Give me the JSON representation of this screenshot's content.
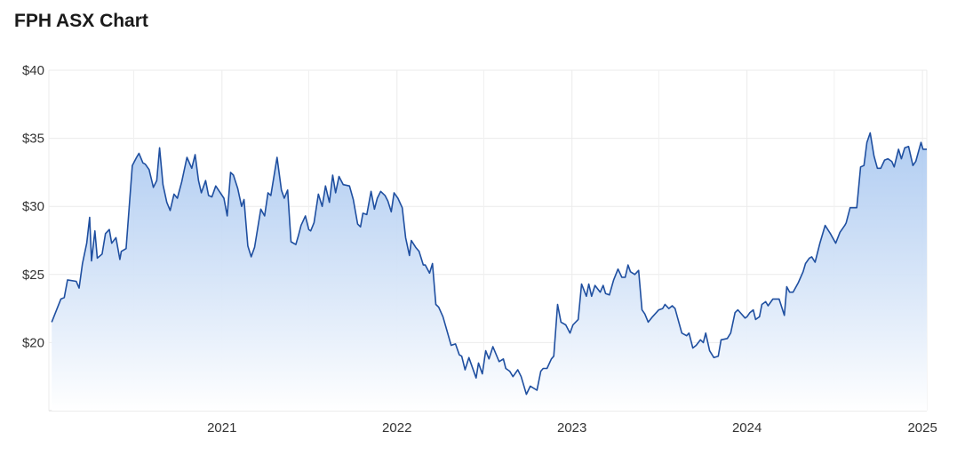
{
  "chart_data": {
    "type": "area",
    "title": "FPH ASX Chart",
    "xlabel": "",
    "ylabel": "",
    "ylim": [
      15,
      40
    ],
    "xlim": [
      "2020-01-06",
      "2025-01-10"
    ],
    "y_ticks": [
      20,
      25,
      30,
      35,
      40
    ],
    "y_tick_labels": [
      "$20",
      "$25",
      "$30",
      "$35",
      "$40"
    ],
    "x_ticks": [
      "2021-01-01",
      "2022-01-01",
      "2023-01-01",
      "2024-01-01",
      "2025-01-01"
    ],
    "x_tick_labels": [
      "2021",
      "2022",
      "2023",
      "2024",
      "2025"
    ],
    "minor_gridlines_x": [
      "2020-07-01",
      "2021-07-01",
      "2022-07-01",
      "2023-07-01",
      "2024-07-01"
    ],
    "grid": true,
    "legend": "none",
    "colors": {
      "line": "#1f4fa0",
      "fill_top": "#a8c7f0",
      "fill_bottom": "#ffffff",
      "grid": "#ebebeb"
    },
    "series": [
      {
        "points": [
          [
            "2020-01-12",
            21.5
          ],
          [
            "2020-01-31",
            23.2
          ],
          [
            "2020-02-07",
            23.3
          ],
          [
            "2020-02-14",
            24.6
          ],
          [
            "2020-03-03",
            24.5
          ],
          [
            "2020-03-09",
            24.0
          ],
          [
            "2020-03-16",
            25.8
          ],
          [
            "2020-03-25",
            27.3
          ],
          [
            "2020-03-31",
            29.2
          ],
          [
            "2020-04-04",
            26.0
          ],
          [
            "2020-04-11",
            28.2
          ],
          [
            "2020-04-16",
            26.2
          ],
          [
            "2020-04-26",
            26.5
          ],
          [
            "2020-05-03",
            28.0
          ],
          [
            "2020-05-11",
            28.3
          ],
          [
            "2020-05-16",
            27.3
          ],
          [
            "2020-05-25",
            27.7
          ],
          [
            "2020-06-02",
            26.1
          ],
          [
            "2020-06-05",
            26.7
          ],
          [
            "2020-06-15",
            26.9
          ],
          [
            "2020-06-28",
            33.0
          ],
          [
            "2020-07-07",
            33.6
          ],
          [
            "2020-07-12",
            33.9
          ],
          [
            "2020-07-20",
            33.2
          ],
          [
            "2020-07-25",
            33.1
          ],
          [
            "2020-08-02",
            32.7
          ],
          [
            "2020-08-11",
            31.4
          ],
          [
            "2020-08-18",
            31.9
          ],
          [
            "2020-08-24",
            34.3
          ],
          [
            "2020-08-31",
            31.6
          ],
          [
            "2020-09-08",
            30.3
          ],
          [
            "2020-09-15",
            29.7
          ],
          [
            "2020-09-23",
            30.9
          ],
          [
            "2020-09-30",
            30.6
          ],
          [
            "2020-10-09",
            31.8
          ],
          [
            "2020-10-20",
            33.6
          ],
          [
            "2020-10-30",
            32.8
          ],
          [
            "2020-11-06",
            33.8
          ],
          [
            "2020-11-13",
            31.9
          ],
          [
            "2020-11-19",
            31.0
          ],
          [
            "2020-11-28",
            31.9
          ],
          [
            "2020-12-04",
            30.8
          ],
          [
            "2020-12-11",
            30.7
          ],
          [
            "2020-12-19",
            31.5
          ],
          [
            "2021-01-05",
            30.6
          ],
          [
            "2021-01-12",
            29.3
          ],
          [
            "2021-01-19",
            32.5
          ],
          [
            "2021-01-25",
            32.3
          ],
          [
            "2021-02-03",
            31.3
          ],
          [
            "2021-02-11",
            30.0
          ],
          [
            "2021-02-16",
            30.5
          ],
          [
            "2021-02-24",
            27.1
          ],
          [
            "2021-03-03",
            26.3
          ],
          [
            "2021-03-10",
            27.0
          ],
          [
            "2021-03-23",
            29.8
          ],
          [
            "2021-03-31",
            29.3
          ],
          [
            "2021-04-07",
            31.0
          ],
          [
            "2021-04-13",
            30.8
          ],
          [
            "2021-04-26",
            33.6
          ],
          [
            "2021-05-05",
            31.2
          ],
          [
            "2021-05-11",
            30.6
          ],
          [
            "2021-05-18",
            31.2
          ],
          [
            "2021-05-25",
            27.4
          ],
          [
            "2021-06-04",
            27.2
          ],
          [
            "2021-06-09",
            27.8
          ],
          [
            "2021-06-15",
            28.6
          ],
          [
            "2021-06-24",
            29.3
          ],
          [
            "2021-07-01",
            28.3
          ],
          [
            "2021-07-05",
            28.2
          ],
          [
            "2021-07-12",
            28.8
          ],
          [
            "2021-07-21",
            30.9
          ],
          [
            "2021-07-29",
            30.0
          ],
          [
            "2021-08-05",
            31.5
          ],
          [
            "2021-08-13",
            30.3
          ],
          [
            "2021-08-20",
            32.3
          ],
          [
            "2021-08-26",
            31.0
          ],
          [
            "2021-09-02",
            32.2
          ],
          [
            "2021-09-11",
            31.6
          ],
          [
            "2021-09-24",
            31.5
          ],
          [
            "2021-10-02",
            30.5
          ],
          [
            "2021-10-11",
            28.7
          ],
          [
            "2021-10-17",
            28.5
          ],
          [
            "2021-10-22",
            29.5
          ],
          [
            "2021-10-30",
            29.4
          ],
          [
            "2021-11-08",
            31.1
          ],
          [
            "2021-11-15",
            29.8
          ],
          [
            "2021-11-21",
            30.6
          ],
          [
            "2021-11-28",
            31.1
          ],
          [
            "2021-12-07",
            30.8
          ],
          [
            "2021-12-13",
            30.4
          ],
          [
            "2021-12-20",
            29.6
          ],
          [
            "2021-12-26",
            31.0
          ],
          [
            "2022-01-03",
            30.6
          ],
          [
            "2022-01-12",
            29.9
          ],
          [
            "2022-01-19",
            27.7
          ],
          [
            "2022-01-27",
            26.4
          ],
          [
            "2022-01-31",
            27.5
          ],
          [
            "2022-02-09",
            27.0
          ],
          [
            "2022-02-16",
            26.7
          ],
          [
            "2022-02-25",
            25.7
          ],
          [
            "2022-03-01",
            25.7
          ],
          [
            "2022-03-10",
            25.1
          ],
          [
            "2022-03-16",
            25.8
          ],
          [
            "2022-03-23",
            22.8
          ],
          [
            "2022-03-29",
            22.6
          ],
          [
            "2022-04-07",
            21.9
          ],
          [
            "2022-04-15",
            20.9
          ],
          [
            "2022-04-24",
            19.8
          ],
          [
            "2022-05-03",
            19.9
          ],
          [
            "2022-05-11",
            19.1
          ],
          [
            "2022-05-16",
            19.0
          ],
          [
            "2022-05-23",
            18.0
          ],
          [
            "2022-05-31",
            18.9
          ],
          [
            "2022-06-15",
            17.4
          ],
          [
            "2022-06-20",
            18.5
          ],
          [
            "2022-06-28",
            17.7
          ],
          [
            "2022-07-05",
            19.4
          ],
          [
            "2022-07-12",
            18.8
          ],
          [
            "2022-07-20",
            19.7
          ],
          [
            "2022-08-02",
            18.6
          ],
          [
            "2022-08-11",
            18.8
          ],
          [
            "2022-08-16",
            18.1
          ],
          [
            "2022-08-24",
            17.9
          ],
          [
            "2022-08-31",
            17.5
          ],
          [
            "2022-09-10",
            18.0
          ],
          [
            "2022-09-17",
            17.5
          ],
          [
            "2022-09-28",
            16.2
          ],
          [
            "2022-10-06",
            16.8
          ],
          [
            "2022-10-20",
            16.5
          ],
          [
            "2022-10-28",
            17.9
          ],
          [
            "2022-11-02",
            18.1
          ],
          [
            "2022-11-10",
            18.1
          ],
          [
            "2022-11-19",
            18.8
          ],
          [
            "2022-11-24",
            19.0
          ],
          [
            "2022-12-02",
            22.8
          ],
          [
            "2022-12-09",
            21.5
          ],
          [
            "2022-12-19",
            21.3
          ],
          [
            "2022-12-28",
            20.7
          ],
          [
            "2023-01-03",
            21.3
          ],
          [
            "2023-01-14",
            21.7
          ],
          [
            "2023-01-21",
            24.3
          ],
          [
            "2023-01-31",
            23.4
          ],
          [
            "2023-02-05",
            24.3
          ],
          [
            "2023-02-11",
            23.4
          ],
          [
            "2023-02-18",
            24.2
          ],
          [
            "2023-03-01",
            23.7
          ],
          [
            "2023-03-07",
            24.2
          ],
          [
            "2023-03-12",
            23.6
          ],
          [
            "2023-03-20",
            23.5
          ],
          [
            "2023-03-29",
            24.6
          ],
          [
            "2023-04-07",
            25.4
          ],
          [
            "2023-04-15",
            24.8
          ],
          [
            "2023-04-22",
            24.8
          ],
          [
            "2023-04-28",
            25.7
          ],
          [
            "2023-05-03",
            25.2
          ],
          [
            "2023-05-12",
            25.0
          ],
          [
            "2023-05-20",
            25.3
          ],
          [
            "2023-05-27",
            22.4
          ],
          [
            "2023-06-02",
            22.1
          ],
          [
            "2023-06-09",
            21.5
          ],
          [
            "2023-06-18",
            21.9
          ],
          [
            "2023-07-01",
            22.4
          ],
          [
            "2023-07-09",
            22.5
          ],
          [
            "2023-07-14",
            22.8
          ],
          [
            "2023-07-22",
            22.5
          ],
          [
            "2023-07-29",
            22.7
          ],
          [
            "2023-08-04",
            22.5
          ],
          [
            "2023-08-18",
            20.7
          ],
          [
            "2023-08-28",
            20.5
          ],
          [
            "2023-09-02",
            20.7
          ],
          [
            "2023-09-10",
            19.6
          ],
          [
            "2023-09-17",
            19.8
          ],
          [
            "2023-09-26",
            20.2
          ],
          [
            "2023-10-02",
            20.0
          ],
          [
            "2023-10-07",
            20.7
          ],
          [
            "2023-10-15",
            19.4
          ],
          [
            "2023-10-24",
            18.9
          ],
          [
            "2023-11-02",
            19.0
          ],
          [
            "2023-11-08",
            20.2
          ],
          [
            "2023-11-21",
            20.3
          ],
          [
            "2023-11-28",
            20.7
          ],
          [
            "2023-12-07",
            22.2
          ],
          [
            "2023-12-13",
            22.4
          ],
          [
            "2023-12-28",
            21.8
          ],
          [
            "2024-01-01",
            21.9
          ],
          [
            "2024-01-07",
            22.2
          ],
          [
            "2024-01-14",
            22.4
          ],
          [
            "2024-01-19",
            21.7
          ],
          [
            "2024-01-27",
            21.9
          ],
          [
            "2024-02-01",
            22.8
          ],
          [
            "2024-02-09",
            23.0
          ],
          [
            "2024-02-14",
            22.7
          ],
          [
            "2024-02-24",
            23.2
          ],
          [
            "2024-03-08",
            23.2
          ],
          [
            "2024-03-19",
            22.0
          ],
          [
            "2024-03-24",
            24.1
          ],
          [
            "2024-03-30",
            23.7
          ],
          [
            "2024-04-06",
            23.7
          ],
          [
            "2024-04-17",
            24.4
          ],
          [
            "2024-04-27",
            25.2
          ],
          [
            "2024-05-02",
            25.8
          ],
          [
            "2024-05-10",
            26.2
          ],
          [
            "2024-05-15",
            26.3
          ],
          [
            "2024-05-22",
            25.9
          ],
          [
            "2024-06-01",
            27.3
          ],
          [
            "2024-06-12",
            28.6
          ],
          [
            "2024-06-23",
            28.0
          ],
          [
            "2024-07-04",
            27.3
          ],
          [
            "2024-07-13",
            28.1
          ],
          [
            "2024-07-23",
            28.6
          ],
          [
            "2024-07-26",
            28.8
          ],
          [
            "2024-08-03",
            29.9
          ],
          [
            "2024-08-10",
            29.9
          ],
          [
            "2024-08-17",
            29.9
          ],
          [
            "2024-08-25",
            32.9
          ],
          [
            "2024-09-01",
            33.0
          ],
          [
            "2024-09-07",
            34.7
          ],
          [
            "2024-09-14",
            35.4
          ],
          [
            "2024-09-22",
            33.7
          ],
          [
            "2024-09-29",
            32.8
          ],
          [
            "2024-10-06",
            32.8
          ],
          [
            "2024-10-14",
            33.4
          ],
          [
            "2024-10-21",
            33.5
          ],
          [
            "2024-10-29",
            33.3
          ],
          [
            "2024-11-03",
            32.9
          ],
          [
            "2024-11-12",
            34.2
          ],
          [
            "2024-11-18",
            33.5
          ],
          [
            "2024-11-25",
            34.3
          ],
          [
            "2024-12-03",
            34.4
          ],
          [
            "2024-12-12",
            33.0
          ],
          [
            "2024-12-18",
            33.3
          ],
          [
            "2024-12-29",
            34.7
          ],
          [
            "2025-01-02",
            34.2
          ],
          [
            "2025-01-10",
            34.2
          ]
        ]
      }
    ]
  }
}
